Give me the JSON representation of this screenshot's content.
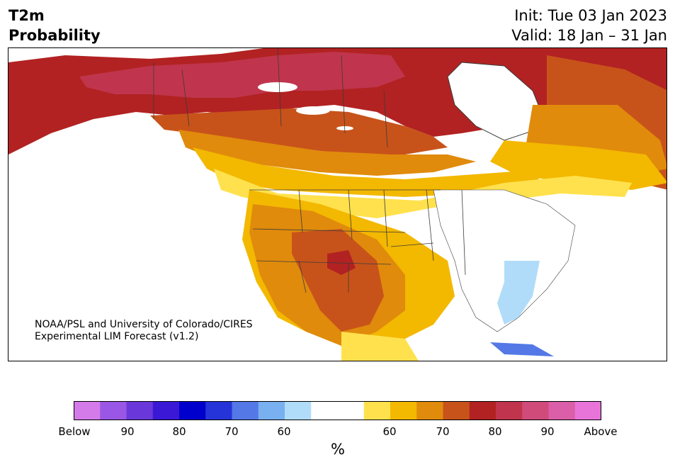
{
  "title": {
    "line1": "T2m",
    "line2": "Probability"
  },
  "init": "Init: Tue 03 Jan 2023",
  "valid": "Valid: 18 Jan – 31 Jan",
  "credit": {
    "line1": "NOAA/PSL and University of Colorado/CIRES",
    "line2": "Experimental LIM Forecast (v1.2)"
  },
  "colorbar": {
    "colors": [
      "#d57ae9",
      "#9a56e4",
      "#6a38da",
      "#3b18d6",
      "#0000cd",
      "#2534d8",
      "#5478e6",
      "#78b0f0",
      "#b0dcfa",
      "#ffffff",
      "#ffffff",
      "#ffe14d",
      "#f3b800",
      "#e08b0c",
      "#c8531a",
      "#b22222",
      "#c0354d",
      "#d04b7a",
      "#da5ea8",
      "#e873d9"
    ],
    "ticks": [
      "Below",
      "90",
      "80",
      "70",
      "60",
      "60",
      "70",
      "80",
      "90",
      "Above"
    ],
    "units": "%"
  },
  "map": {
    "colors": {
      "cold60": "#b0dcfa",
      "cold70": "#78b0f0",
      "cold80": "#5478e6",
      "warm60": "#ffe14d",
      "warm65": "#f3b800",
      "warm70": "#e08b0c",
      "warm75": "#c8531a",
      "warm80": "#b22222",
      "warm85": "#c0354d",
      "land": "#ffffff",
      "border": "#3b3b3b"
    }
  }
}
